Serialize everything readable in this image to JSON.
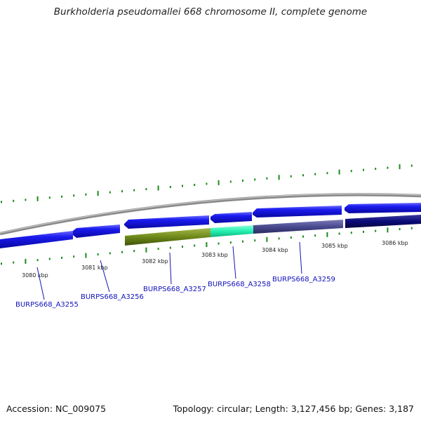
{
  "title": "Burkholderia pseudomallei 668 chromosome II, complete genome",
  "footer": {
    "accession": "Accession: NC_009075",
    "summary": "Topology: circular; Length: 3,127,456 bp; Genes: 3,187"
  },
  "kbp_labels": [
    "3080 kbp",
    "3081 kbp",
    "3082 kbp",
    "3083 kbp",
    "3084 kbp",
    "3085 kbp",
    "3086 kbp"
  ],
  "gene_labels": [
    "BURPS668_A3255",
    "BURPS668_A3256",
    "BURPS668_A3257",
    "BURPS668_A3258",
    "BURPS668_A3259"
  ],
  "colors": {
    "backbone": "#8a8a8a",
    "tick": "#1a8a1a",
    "gene_default": "#1414e6",
    "gene_dark": "#0a0a78",
    "gene_olive": "#6f8a1a",
    "gene_mint": "#22f0b0",
    "gene_slate": "#4a4a90",
    "label": "#1010bb"
  }
}
